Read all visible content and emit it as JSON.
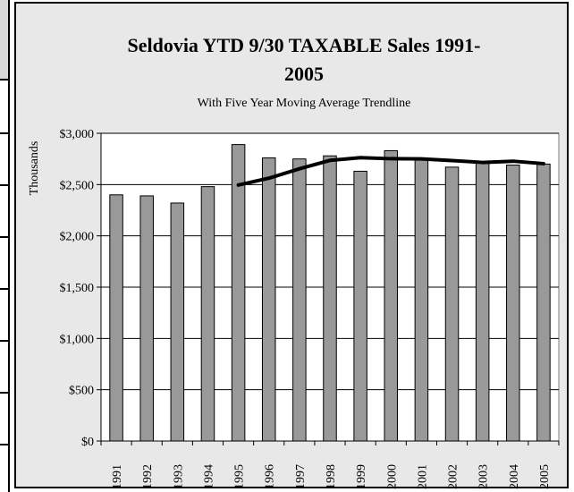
{
  "chart_data": {
    "type": "bar",
    "title": "Seldovia YTD 9/30 TAXABLE Sales 1991-2005",
    "title_line1": "Seldovia YTD 9/30 TAXABLE Sales 1991-",
    "title_line2": "2005",
    "subtitle": "With Five Year Moving Average Trendline",
    "ylabel": "Thousands",
    "xlabel": "",
    "ylim": [
      0,
      3000
    ],
    "yticks": [
      "$0",
      "$500",
      "$1,000",
      "$1,500",
      "$2,000",
      "$2,500",
      "$3,000"
    ],
    "ytick_values": [
      0,
      500,
      1000,
      1500,
      2000,
      2500,
      3000
    ],
    "grid": true,
    "categories": [
      "1991",
      "1992",
      "1993",
      "1994",
      "1995",
      "1996",
      "1997",
      "1998",
      "1999",
      "2000",
      "2001",
      "2002",
      "2003",
      "2004",
      "2005"
    ],
    "series": [
      {
        "values": [
          2400,
          2390,
          2320,
          2480,
          2890,
          2760,
          2750,
          2780,
          2630,
          2830,
          2740,
          2670,
          2710,
          2690,
          2700
        ],
        "color": "#999999"
      }
    ],
    "trendline": {
      "start_index": 4,
      "values": [
        2496,
        2562,
        2654,
        2736,
        2762,
        2752,
        2750,
        2734,
        2716,
        2728,
        2704
      ],
      "color": "#000000"
    }
  }
}
